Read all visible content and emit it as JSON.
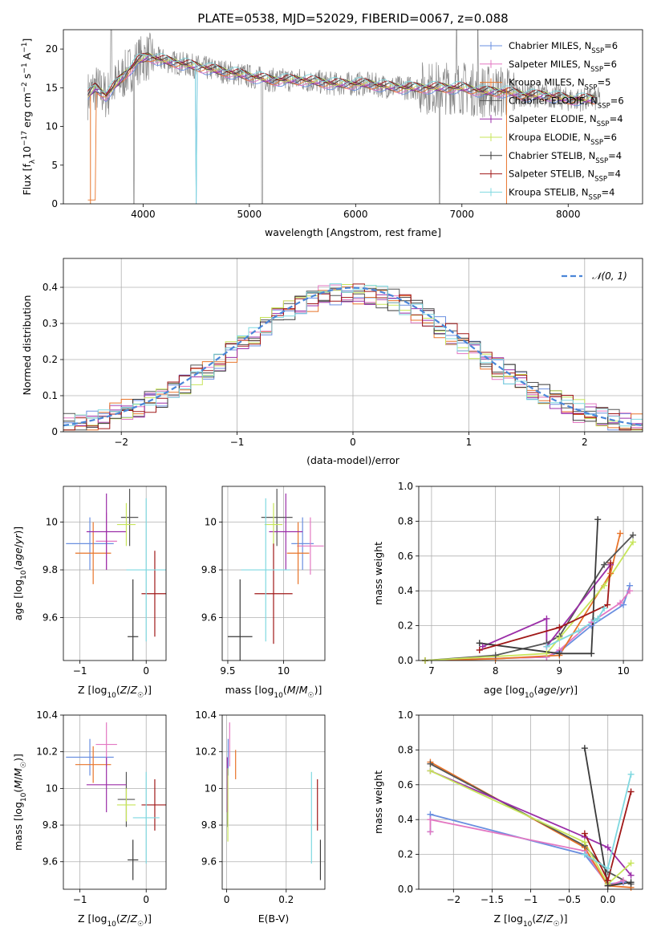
{
  "figure": {
    "title": "PLATE=0538, MJD=52029, FIBERID=0067, z=0.088"
  },
  "series_styles": [
    {
      "name": "Chabrier MILES, N_SSP=6",
      "label": "Chabrier MILES, N",
      "sub": "SSP",
      "suffix": "=6",
      "color": "#6a8fe0"
    },
    {
      "name": "Salpeter MILES, N_SSP=6",
      "label": "Salpeter MILES, N",
      "sub": "SSP",
      "suffix": "=6",
      "color": "#e377c2"
    },
    {
      "name": "Kroupa MILES, N_SSP=5",
      "label": "Kroupa MILES, N",
      "sub": "SSP",
      "suffix": "=5",
      "color": "#e8742a"
    },
    {
      "name": "Chabrier ELODIE, N_SSP=6",
      "label": "Chabrier ELODIE, N",
      "sub": "SSP",
      "suffix": "=6",
      "color": "#555555"
    },
    {
      "name": "Salpeter ELODIE, N_SSP=4",
      "label": "Salpeter ELODIE, N",
      "sub": "SSP",
      "suffix": "=4",
      "color": "#9b2ea8"
    },
    {
      "name": "Kroupa ELODIE, N_SSP=6",
      "label": "Kroupa ELODIE, N",
      "sub": "SSP",
      "suffix": "=6",
      "color": "#c7e55a"
    },
    {
      "name": "Chabrier STELIB, N_SSP=4",
      "label": "Chabrier STELIB, N",
      "sub": "SSP",
      "suffix": "=4",
      "color": "#3a3a3a"
    },
    {
      "name": "Salpeter STELIB, N_SSP=4",
      "label": "Salpeter STELIB, N",
      "sub": "SSP",
      "suffix": "=4",
      "color": "#a01818"
    },
    {
      "name": "Kroupa STELIB, N_SSP=4",
      "label": "Kroupa STELIB, N",
      "sub": "SSP",
      "suffix": "=4",
      "color": "#7fd8e0"
    }
  ],
  "chart_data": [
    {
      "id": "spectrum",
      "type": "line",
      "title": "PLATE=0538, MJD=52029, FIBERID=0067, z=0.088",
      "xlabel": "wavelength [Angstrom, rest frame]",
      "ylabel": "Flux [f_λ 10^-17 erg cm^-2 s^-1 A^-1]",
      "xlim": [
        3250,
        8700
      ],
      "ylim": [
        0,
        22.5
      ],
      "xticks": [
        4000,
        5000,
        6000,
        7000,
        8000
      ],
      "yticks": [
        0,
        5,
        10,
        15,
        20
      ],
      "legend": "right",
      "data_color": "#888888",
      "data_profile": {
        "x": [
          3480,
          3550,
          3650,
          3750,
          3850,
          3950,
          4050,
          4200,
          4400,
          4600,
          4800,
          5000,
          5200,
          5500,
          5800,
          6100,
          6400,
          6700,
          7000,
          7200,
          7400,
          7600,
          7800,
          8000,
          8200,
          8300
        ],
        "y": [
          14,
          15,
          14,
          15.5,
          17,
          18.5,
          19,
          18.5,
          18,
          17.5,
          17,
          16.5,
          16,
          16,
          15.5,
          15.5,
          15,
          15,
          15,
          14.5,
          14.5,
          14,
          14,
          13.5,
          13.5,
          13.5
        ]
      },
      "model_colors_note": "model curves follow series_styles colours"
    },
    {
      "id": "residuals",
      "type": "histogram",
      "xlabel": "(data-model)/error",
      "ylabel": "Normed distribution",
      "xlim": [
        -2.5,
        2.5
      ],
      "ylim": [
        0,
        0.48
      ],
      "xticks": [
        -2,
        -1,
        0,
        1,
        2
      ],
      "yticks": [
        0,
        0.1,
        0.2,
        0.3,
        0.4
      ],
      "grid": true,
      "legend": "top-right",
      "reference_curve": {
        "name": "𝒩(0, 1)",
        "mean": 0,
        "sigma": 1,
        "color": "#4a86d8"
      },
      "bin_width": 0.1
    },
    {
      "id": "age_vs_Z",
      "type": "errorbar",
      "xlabel": "Z [log10(Z/Z☉)]",
      "ylabel": "age  [log10(age/yr)]",
      "xlim": [
        -1.25,
        0.3
      ],
      "ylim": [
        9.42,
        10.15
      ],
      "xticks": [
        -1,
        0
      ],
      "yticks": [
        9.6,
        9.8,
        10.0
      ],
      "grid": true,
      "points": [
        {
          "series": 0,
          "x": -0.85,
          "y": 9.91,
          "xerr": 0.36,
          "yerr": 0.11
        },
        {
          "series": 1,
          "x": -0.6,
          "y": 9.92,
          "xerr": 0.16,
          "yerr": 0.12
        },
        {
          "series": 2,
          "x": -0.8,
          "y": 9.87,
          "xerr": 0.27,
          "yerr": 0.13
        },
        {
          "series": 3,
          "x": -0.25,
          "y": 10.02,
          "xerr": 0.13,
          "yerr": 0.12
        },
        {
          "series": 4,
          "x": -0.6,
          "y": 9.96,
          "xerr": 0.3,
          "yerr": 0.16
        },
        {
          "series": 5,
          "x": -0.3,
          "y": 9.99,
          "xerr": 0.14,
          "yerr": 0.09
        },
        {
          "series": 6,
          "x": -0.2,
          "y": 9.52,
          "xerr": 0.08,
          "yerr": 0.24
        },
        {
          "series": 7,
          "x": 0.13,
          "y": 9.7,
          "xerr": 0.2,
          "yerr": 0.18
        },
        {
          "series": 8,
          "x": 0.0,
          "y": 9.8,
          "xerr": 0.3,
          "yerr": 0.3
        }
      ]
    },
    {
      "id": "age_vs_mass",
      "type": "errorbar",
      "xlabel": "mass [log10(M/M☉)]",
      "ylabel": "",
      "xlim": [
        9.45,
        10.37
      ],
      "ylim": [
        9.42,
        10.15
      ],
      "xticks": [
        9.5,
        10.0
      ],
      "yticks": [
        9.6,
        9.8,
        10.0
      ],
      "grid": true,
      "points": [
        {
          "series": 0,
          "x": 10.17,
          "y": 9.91,
          "xerr": 0.1,
          "yerr": 0.11
        },
        {
          "series": 1,
          "x": 10.24,
          "y": 9.9,
          "xerr": 0.12,
          "yerr": 0.12
        },
        {
          "series": 2,
          "x": 10.13,
          "y": 9.87,
          "xerr": 0.1,
          "yerr": 0.13
        },
        {
          "series": 3,
          "x": 9.94,
          "y": 10.02,
          "xerr": 0.14,
          "yerr": 0.12
        },
        {
          "series": 4,
          "x": 10.02,
          "y": 9.96,
          "xerr": 0.15,
          "yerr": 0.16
        },
        {
          "series": 5,
          "x": 9.91,
          "y": 9.99,
          "xerr": 0.08,
          "yerr": 0.09
        },
        {
          "series": 6,
          "x": 9.61,
          "y": 9.52,
          "xerr": 0.11,
          "yerr": 0.24
        },
        {
          "series": 7,
          "x": 9.91,
          "y": 9.7,
          "xerr": 0.17,
          "yerr": 0.21
        },
        {
          "series": 8,
          "x": 9.84,
          "y": 9.8,
          "xerr": 0.22,
          "yerr": 0.3
        }
      ]
    },
    {
      "id": "massweight_vs_age",
      "type": "line",
      "xlabel": "age  [log10(age/yr)]",
      "ylabel": "mass weight",
      "xlim": [
        6.8,
        10.3
      ],
      "ylim": [
        0,
        1.0
      ],
      "xticks": [
        7,
        8,
        9,
        10
      ],
      "yticks": [
        0.0,
        0.2,
        0.4,
        0.6,
        0.8,
        1.0
      ],
      "grid": true,
      "series": [
        {
          "series": 0,
          "x": [
            6.9,
            8.8,
            9.0,
            9.5,
            10.0,
            10.1
          ],
          "y": [
            0.0,
            0.02,
            0.05,
            0.2,
            0.32,
            0.43
          ]
        },
        {
          "series": 1,
          "x": [
            6.9,
            8.8,
            9.0,
            9.5,
            9.95,
            10.1
          ],
          "y": [
            0.0,
            0.02,
            0.06,
            0.22,
            0.33,
            0.4
          ]
        },
        {
          "series": 2,
          "x": [
            6.9,
            8.0,
            9.0,
            9.8,
            9.95
          ],
          "y": [
            0.0,
            0.01,
            0.03,
            0.5,
            0.73
          ]
        },
        {
          "series": 3,
          "x": [
            6.9,
            8.0,
            8.8,
            9.0,
            9.7,
            10.15
          ],
          "y": [
            0.0,
            0.03,
            0.1,
            0.14,
            0.55,
            0.72
          ]
        },
        {
          "series": 4,
          "x": [
            7.8,
            8.8,
            8.8,
            9.8
          ],
          "y": [
            0.08,
            0.24,
            0.08,
            0.55
          ]
        },
        {
          "series": 5,
          "x": [
            6.9,
            8.8,
            9.0,
            9.7,
            10.15
          ],
          "y": [
            0.0,
            0.04,
            0.13,
            0.43,
            0.68
          ]
        },
        {
          "series": 6,
          "x": [
            7.75,
            9.0,
            9.5,
            9.6
          ],
          "y": [
            0.1,
            0.04,
            0.04,
            0.81
          ]
        },
        {
          "series": 7,
          "x": [
            7.75,
            9.0,
            9.75,
            9.8
          ],
          "y": [
            0.06,
            0.19,
            0.32,
            0.56
          ]
        },
        {
          "series": 8,
          "x": [
            8.8,
            9.3,
            9.55,
            9.6,
            9.7
          ],
          "y": [
            0.08,
            0.17,
            0.23,
            0.24,
            0.3
          ]
        }
      ]
    },
    {
      "id": "mass_vs_Z",
      "type": "errorbar",
      "xlabel": "Z [log10(Z/Z☉)]",
      "ylabel": "mass [log10(M/M☉)]",
      "xlim": [
        -1.25,
        0.3
      ],
      "ylim": [
        9.45,
        10.4
      ],
      "xticks": [
        -1,
        0
      ],
      "yticks": [
        9.6,
        9.8,
        10.0,
        10.2,
        10.4
      ],
      "grid": true,
      "points": [
        {
          "series": 0,
          "x": -0.85,
          "y": 10.17,
          "xerr": 0.36,
          "yerr": 0.1
        },
        {
          "series": 1,
          "x": -0.6,
          "y": 10.24,
          "xerr": 0.16,
          "yerr": 0.12
        },
        {
          "series": 2,
          "x": -0.8,
          "y": 10.13,
          "xerr": 0.27,
          "yerr": 0.1
        },
        {
          "series": 3,
          "x": -0.3,
          "y": 9.94,
          "xerr": 0.13,
          "yerr": 0.15
        },
        {
          "series": 4,
          "x": -0.6,
          "y": 10.02,
          "xerr": 0.3,
          "yerr": 0.15
        },
        {
          "series": 5,
          "x": -0.3,
          "y": 9.91,
          "xerr": 0.14,
          "yerr": 0.09
        },
        {
          "series": 6,
          "x": -0.2,
          "y": 9.61,
          "xerr": 0.08,
          "yerr": 0.11
        },
        {
          "series": 7,
          "x": 0.13,
          "y": 9.91,
          "xerr": 0.2,
          "yerr": 0.14
        },
        {
          "series": 8,
          "x": 0.0,
          "y": 9.84,
          "xerr": 0.2,
          "yerr": 0.25
        }
      ]
    },
    {
      "id": "mass_vs_EBV",
      "type": "errorbar",
      "xlabel": "E(B-V)",
      "ylabel": "",
      "xlim": [
        -0.015,
        0.33
      ],
      "ylim": [
        9.45,
        10.4
      ],
      "xticks": [
        0.0,
        0.2
      ],
      "yticks": [
        9.6,
        9.8,
        10.0,
        10.2,
        10.4
      ],
      "grid": true,
      "points": [
        {
          "series": 0,
          "x": 0.005,
          "y": 10.17,
          "xerr": 0.0,
          "yerr": 0.1
        },
        {
          "series": 1,
          "x": 0.01,
          "y": 10.24,
          "xerr": 0.0,
          "yerr": 0.12
        },
        {
          "series": 2,
          "x": 0.03,
          "y": 10.13,
          "xerr": 0.0,
          "yerr": 0.08
        },
        {
          "series": 3,
          "x": 0.003,
          "y": 9.94,
          "xerr": 0.0,
          "yerr": 0.15
        },
        {
          "series": 4,
          "x": 0.002,
          "y": 10.02,
          "xerr": 0.0,
          "yerr": 0.15
        },
        {
          "series": 5,
          "x": 0.004,
          "y": 9.91,
          "xerr": 0.0,
          "yerr": 0.2
        },
        {
          "series": 6,
          "x": 0.315,
          "y": 9.61,
          "xerr": 0.0,
          "yerr": 0.11
        },
        {
          "series": 7,
          "x": 0.305,
          "y": 9.91,
          "xerr": 0.0,
          "yerr": 0.14
        },
        {
          "series": 8,
          "x": 0.285,
          "y": 9.84,
          "xerr": 0.0,
          "yerr": 0.25
        }
      ]
    },
    {
      "id": "massweight_vs_Z",
      "type": "line",
      "xlabel": "Z [log10(Z/Z☉)]",
      "ylabel": "mass weight",
      "xlim": [
        -2.45,
        0.45
      ],
      "ylim": [
        0,
        1.0
      ],
      "xticks": [
        -2.0,
        -1.5,
        -1.0,
        -0.5,
        0.0
      ],
      "yticks": [
        0.0,
        0.2,
        0.4,
        0.6,
        0.8,
        1.0
      ],
      "grid": true,
      "series": [
        {
          "series": 0,
          "x": [
            -2.3,
            -2.3,
            -0.3,
            0.0,
            0.2
          ],
          "y": [
            0.33,
            0.43,
            0.2,
            0.03,
            0.04
          ]
        },
        {
          "series": 1,
          "x": [
            -2.3,
            -2.3,
            -0.3,
            0.0,
            0.2
          ],
          "y": [
            0.33,
            0.4,
            0.22,
            0.02,
            0.05
          ]
        },
        {
          "series": 2,
          "x": [
            -2.3,
            -0.3,
            0.0,
            0.3
          ],
          "y": [
            0.73,
            0.24,
            0.02,
            0.01
          ]
        },
        {
          "series": 3,
          "x": [
            -2.3,
            -0.3,
            0.0,
            0.3
          ],
          "y": [
            0.72,
            0.25,
            0.1,
            0.03
          ]
        },
        {
          "series": 4,
          "x": [
            -2.3,
            -0.3,
            0.0,
            0.3
          ],
          "y": [
            0.68,
            0.3,
            0.24,
            0.08
          ]
        },
        {
          "series": 5,
          "x": [
            -2.3,
            -0.3,
            0.0,
            0.3
          ],
          "y": [
            0.68,
            0.27,
            0.03,
            0.15
          ]
        },
        {
          "series": 6,
          "x": [
            -0.3,
            0.0,
            0.3
          ],
          "y": [
            0.81,
            0.02,
            0.04
          ]
        },
        {
          "series": 7,
          "x": [
            -0.3,
            0.0,
            0.3
          ],
          "y": [
            0.32,
            0.05,
            0.56
          ]
        },
        {
          "series": 8,
          "x": [
            -0.3,
            0.0,
            0.3
          ],
          "y": [
            0.2,
            0.12,
            0.66
          ]
        }
      ]
    }
  ]
}
